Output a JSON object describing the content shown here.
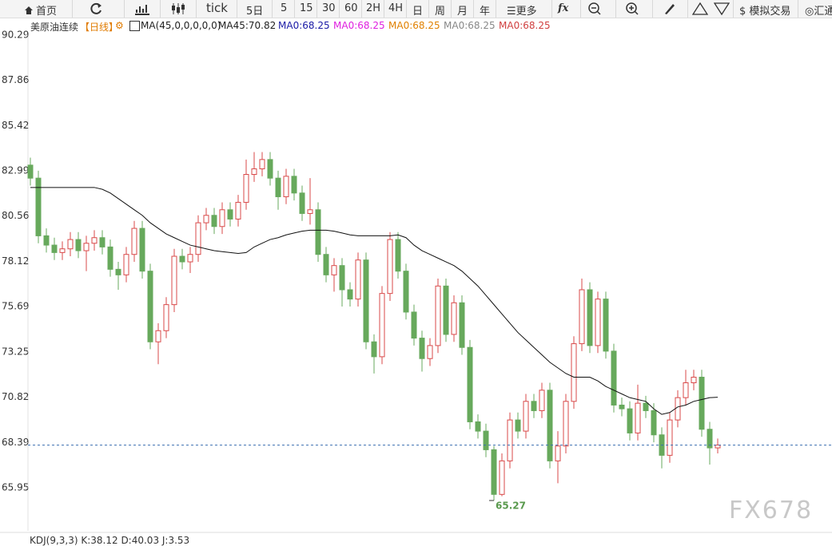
{
  "toolbar": [
    "首页",
    "tick",
    "5日",
    "5",
    "15",
    "30",
    "60",
    "2H",
    "4H",
    "日",
    "周",
    "月",
    "年",
    "更多",
    "模拟交易",
    "汇通"
  ],
  "legend": {
    "instrument": "美原油连续",
    "period": "【日线】",
    "indicator": "MA(45,0,0,0,0,0)",
    "ma45": "MA45:70.82",
    "ma0": [
      {
        "text": "MA0:68.25",
        "color": "#1a1aa6"
      },
      {
        "text": "MA0:68.25",
        "color": "#e020e0"
      },
      {
        "text": "MA0:68.25",
        "color": "#e08000"
      },
      {
        "text": "MA0:68.25",
        "color": "#888888"
      },
      {
        "text": "MA0:68.25",
        "color": "#d04040"
      }
    ]
  },
  "sub_indicator": "KDJ(9,3,3) K:38.12 D:40.03 J:3.53",
  "watermark": "FX678",
  "chart_data": {
    "type": "candlestick",
    "up_color": "#d94a4a",
    "down_color": "#67a95c",
    "open": [
      83.3,
      82.6,
      79.5,
      79.0,
      78.6,
      78.8,
      79.3,
      78.7,
      79.1,
      79.4,
      78.9,
      77.7,
      77.4,
      78.5,
      79.9,
      77.6,
      73.8,
      74.4,
      75.8,
      78.4,
      78.1,
      78.5,
      80.2,
      80.6,
      80.0,
      80.9,
      80.4,
      81.3,
      82.8,
      83.1,
      83.6,
      82.6,
      81.6,
      82.7,
      81.8,
      80.7,
      80.9,
      78.5,
      77.4,
      77.9,
      76.6,
      76.1,
      78.2,
      73.8,
      73.0,
      76.4,
      79.3,
      77.6,
      75.4,
      74.0,
      72.9,
      73.6,
      76.8,
      74.2,
      75.9,
      73.5,
      69.5,
      69.0,
      68.0,
      65.6,
      67.4,
      69.6,
      69.0,
      70.6,
      70.1,
      71.2,
      67.4,
      68.2,
      70.6,
      73.7,
      76.6,
      73.6,
      76.1,
      73.3,
      70.4,
      70.2,
      68.9,
      70.5,
      70.1,
      68.8,
      67.7,
      69.6,
      70.8,
      71.6,
      71.9,
      69.1,
      68.1
    ],
    "high": [
      83.7,
      83.0,
      79.9,
      79.4,
      79.2,
      79.7,
      79.7,
      79.5,
      79.8,
      79.8,
      79.3,
      78.1,
      78.9,
      80.3,
      80.3,
      78.0,
      74.8,
      76.2,
      78.8,
      78.8,
      78.9,
      80.6,
      81.0,
      81.0,
      81.3,
      81.3,
      81.7,
      83.6,
      84.0,
      84.0,
      84.0,
      83.0,
      83.1,
      83.1,
      82.2,
      82.6,
      81.3,
      78.9,
      78.3,
      78.3,
      77.0,
      78.6,
      78.6,
      74.2,
      76.8,
      79.7,
      79.7,
      78.0,
      75.8,
      74.4,
      74.0,
      77.2,
      77.2,
      76.3,
      76.3,
      73.9,
      69.9,
      69.4,
      68.2,
      67.8,
      70.0,
      70.0,
      71.0,
      71.0,
      71.6,
      71.6,
      69.0,
      71.0,
      74.1,
      77.2,
      77.0,
      76.5,
      76.5,
      73.7,
      70.8,
      70.6,
      71.5,
      70.9,
      70.5,
      69.2,
      70.0,
      71.2,
      72.3,
      72.3,
      72.3,
      69.5,
      68.6
    ],
    "low": [
      82.2,
      79.1,
      78.6,
      78.2,
      78.2,
      78.4,
      78.3,
      77.6,
      78.7,
      78.5,
      77.3,
      76.6,
      77.0,
      78.1,
      77.2,
      73.4,
      72.6,
      74.0,
      75.4,
      77.7,
      77.5,
      78.1,
      79.8,
      79.6,
      79.6,
      80.0,
      80.0,
      80.9,
      82.4,
      82.7,
      82.2,
      80.9,
      81.2,
      81.4,
      80.3,
      80.1,
      78.1,
      77.0,
      76.5,
      75.7,
      75.7,
      75.7,
      73.4,
      72.1,
      72.6,
      76.0,
      77.2,
      75.0,
      73.6,
      72.2,
      72.5,
      73.2,
      73.8,
      73.8,
      73.1,
      69.1,
      68.6,
      67.6,
      65.27,
      65.5,
      67.0,
      68.6,
      68.6,
      69.7,
      69.7,
      67.0,
      66.2,
      67.8,
      70.2,
      73.3,
      73.2,
      73.2,
      72.9,
      70.0,
      69.8,
      68.5,
      68.5,
      69.7,
      68.4,
      67.0,
      67.3,
      69.2,
      70.4,
      71.2,
      68.7,
      67.2,
      67.8
    ],
    "close": [
      82.6,
      79.5,
      79.0,
      78.6,
      78.8,
      79.3,
      78.7,
      79.1,
      79.4,
      78.9,
      77.7,
      77.4,
      78.5,
      79.9,
      77.6,
      73.8,
      74.4,
      75.8,
      78.4,
      78.1,
      78.5,
      80.2,
      80.6,
      80.0,
      80.9,
      80.4,
      81.3,
      82.8,
      83.1,
      83.6,
      82.6,
      81.6,
      82.7,
      81.8,
      80.7,
      80.9,
      78.5,
      77.4,
      77.9,
      76.6,
      76.1,
      78.2,
      73.8,
      73.0,
      76.4,
      79.3,
      77.6,
      75.4,
      74.0,
      72.9,
      73.6,
      76.8,
      74.2,
      75.9,
      73.5,
      69.5,
      69.0,
      68.0,
      65.6,
      67.4,
      69.6,
      69.0,
      70.6,
      70.1,
      71.2,
      67.4,
      68.2,
      70.6,
      73.7,
      76.6,
      73.6,
      76.1,
      73.3,
      70.4,
      70.2,
      68.9,
      70.5,
      70.1,
      68.8,
      67.7,
      69.6,
      70.8,
      71.6,
      71.9,
      69.1,
      68.1,
      68.25
    ],
    "ma": {
      "color": "#111111",
      "values": [
        82.1,
        82.1,
        82.1,
        82.1,
        82.1,
        82.1,
        82.1,
        82.1,
        82.1,
        82.0,
        81.8,
        81.5,
        81.2,
        80.9,
        80.6,
        80.2,
        79.9,
        79.6,
        79.4,
        79.2,
        79.0,
        78.9,
        78.8,
        78.7,
        78.65,
        78.6,
        78.55,
        78.6,
        78.9,
        79.1,
        79.3,
        79.4,
        79.55,
        79.65,
        79.75,
        79.8,
        79.8,
        79.8,
        79.75,
        79.65,
        79.55,
        79.5,
        79.5,
        79.5,
        79.5,
        79.5,
        79.55,
        79.4,
        79.0,
        78.7,
        78.5,
        78.3,
        78.1,
        77.9,
        77.6,
        77.2,
        76.8,
        76.3,
        75.8,
        75.3,
        74.8,
        74.3,
        73.9,
        73.5,
        73.1,
        72.7,
        72.4,
        72.1,
        71.9,
        71.9,
        71.9,
        71.7,
        71.4,
        71.2,
        71.0,
        70.8,
        70.7,
        70.6,
        70.2,
        69.9,
        70.0,
        70.3,
        70.4,
        70.6,
        70.7,
        70.8,
        70.82
      ]
    },
    "last_price": 68.25,
    "ylim": [
      63.64,
      90.46
    ],
    "yticks": [
      90.29,
      87.86,
      85.42,
      82.99,
      80.56,
      78.12,
      75.69,
      73.25,
      70.82,
      68.39,
      65.95
    ]
  }
}
